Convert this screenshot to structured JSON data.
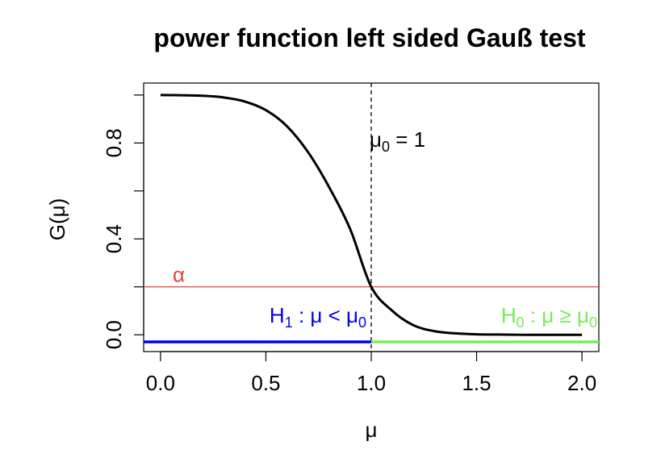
{
  "chart_data": {
    "type": "line",
    "title": "power function left sided Gauß test",
    "xlabel": "μ",
    "ylabel": "G(μ)",
    "xlim": [
      -0.08,
      2.08
    ],
    "ylim": [
      -0.07,
      1.05
    ],
    "xticks": [
      0.0,
      0.5,
      1.0,
      1.5,
      2.0
    ],
    "xtick_labels": [
      "0.0",
      "0.5",
      "1.0",
      "1.5",
      "2.0"
    ],
    "yticks": [
      0.0,
      0.2,
      0.4,
      0.6,
      0.8,
      1.0
    ],
    "ytick_labels": [
      "0.0",
      "",
      "0.4",
      "",
      "0.8",
      ""
    ],
    "grid": false,
    "series": [
      {
        "x": [
          0.0,
          0.1,
          0.2,
          0.3,
          0.4,
          0.5,
          0.6,
          0.7,
          0.8,
          0.9,
          1.0,
          1.1,
          1.2,
          1.3,
          1.4,
          1.5,
          1.6,
          1.7,
          1.8,
          1.9,
          2.0
        ],
        "y": [
          1.0,
          0.999,
          0.997,
          0.99,
          0.973,
          0.937,
          0.87,
          0.762,
          0.616,
          0.441,
          0.2,
          0.1,
          0.04,
          0.015,
          0.006,
          0.002,
          0.001,
          0.0,
          0.0,
          0.0,
          0.0
        ],
        "color": "#000000"
      }
    ],
    "annotations": {
      "mu0": {
        "label": "μ",
        "sub": "0",
        "suffix": " = 1",
        "x": 1.0
      },
      "alpha": {
        "label": "α",
        "y": 0.2,
        "color": "#e8403a"
      },
      "h1": {
        "label": "H",
        "sub": "1",
        "rest": " : μ < μ",
        "rest_sub": "0",
        "x_range": [
          -0.08,
          1.0
        ],
        "color": "#0000ee"
      },
      "h0": {
        "label": "H",
        "sub": "0",
        "rest": " : μ ≥ μ",
        "rest_sub": "0",
        "x_range": [
          1.0,
          2.08
        ],
        "color": "#77ee55"
      }
    }
  }
}
